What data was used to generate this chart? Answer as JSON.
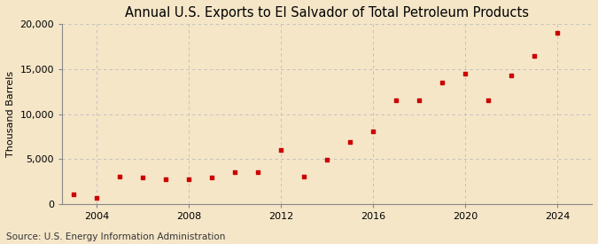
{
  "title": "Annual U.S. Exports to El Salvador of Total Petroleum Products",
  "ylabel": "Thousand Barrels",
  "source": "Source: U.S. Energy Information Administration",
  "background_color": "#f5e6c8",
  "marker_color": "#cc0000",
  "years": [
    2003,
    2004,
    2005,
    2006,
    2007,
    2008,
    2009,
    2010,
    2011,
    2012,
    2013,
    2014,
    2015,
    2016,
    2017,
    2018,
    2019,
    2020,
    2021,
    2022,
    2023,
    2024
  ],
  "values": [
    1100,
    700,
    3000,
    2900,
    2750,
    2750,
    2900,
    3500,
    3500,
    6000,
    3000,
    4900,
    6900,
    8100,
    11500,
    11500,
    13500,
    14500,
    11500,
    14300,
    16500,
    19000
  ],
  "ylim": [
    0,
    20000
  ],
  "yticks": [
    0,
    5000,
    10000,
    15000,
    20000
  ],
  "xticks": [
    2004,
    2008,
    2012,
    2016,
    2020,
    2024
  ],
  "grid_color": "#bbbbbb",
  "title_fontsize": 10.5,
  "label_fontsize": 8,
  "tick_fontsize": 8,
  "source_fontsize": 7.5
}
